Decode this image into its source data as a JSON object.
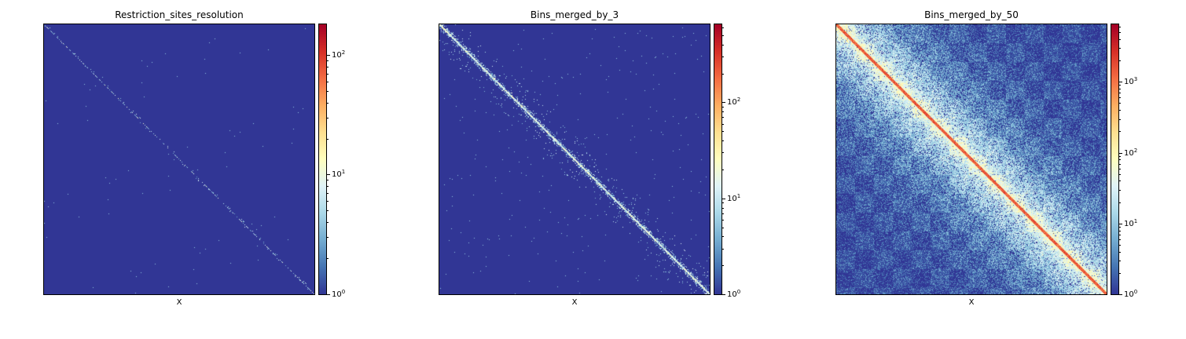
{
  "chart_data": [
    {
      "type": "heatmap",
      "title": "Restriction_sites_resolution",
      "xlabel": "X",
      "ylabel": "",
      "colormap": "RdYlBu_r",
      "color_scale": "log",
      "colorbar_range": [
        1,
        180
      ],
      "colorbar_ticks": [
        {
          "base": "10",
          "exp": "0",
          "value": 1
        },
        {
          "base": "10",
          "exp": "1",
          "value": 10
        },
        {
          "base": "10",
          "exp": "2",
          "value": 100
        }
      ],
      "pattern": "sparse diagonal"
    },
    {
      "type": "heatmap",
      "title": "Bins_merged_by_3",
      "xlabel": "X",
      "ylabel": "",
      "colormap": "RdYlBu_r",
      "color_scale": "log",
      "colorbar_range": [
        1,
        650
      ],
      "colorbar_ticks": [
        {
          "base": "10",
          "exp": "0",
          "value": 1
        },
        {
          "base": "10",
          "exp": "1",
          "value": 10
        },
        {
          "base": "10",
          "exp": "2",
          "value": 100
        }
      ],
      "pattern": "moderate diagonal"
    },
    {
      "type": "heatmap",
      "title": "Bins_merged_by_50",
      "xlabel": "X",
      "ylabel": "",
      "colormap": "RdYlBu_r",
      "color_scale": "log",
      "colorbar_range": [
        1,
        6500
      ],
      "colorbar_ticks": [
        {
          "base": "10",
          "exp": "0",
          "value": 1
        },
        {
          "base": "10",
          "exp": "1",
          "value": 10
        },
        {
          "base": "10",
          "exp": "2",
          "value": 100
        },
        {
          "base": "10",
          "exp": "3",
          "value": 1000
        }
      ],
      "pattern": "dense diagonal"
    }
  ]
}
